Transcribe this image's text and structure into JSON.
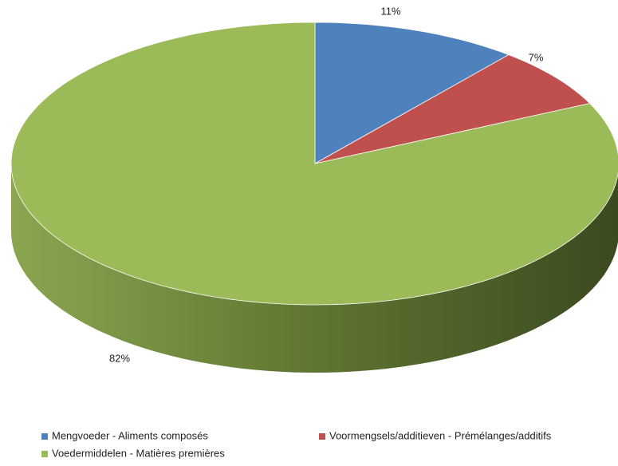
{
  "chart_data": {
    "type": "pie",
    "categories": [
      "Mengvoeder - Aliments composés",
      "Voormengsels/additieven - Prémélanges/additifs",
      "Voedermiddelen - Matières premières"
    ],
    "values": [
      11,
      7,
      82
    ],
    "value_labels": [
      "11%",
      "7%",
      "82%"
    ],
    "colors": [
      "#4f81bd",
      "#c0504d",
      "#9bbb59"
    ]
  }
}
